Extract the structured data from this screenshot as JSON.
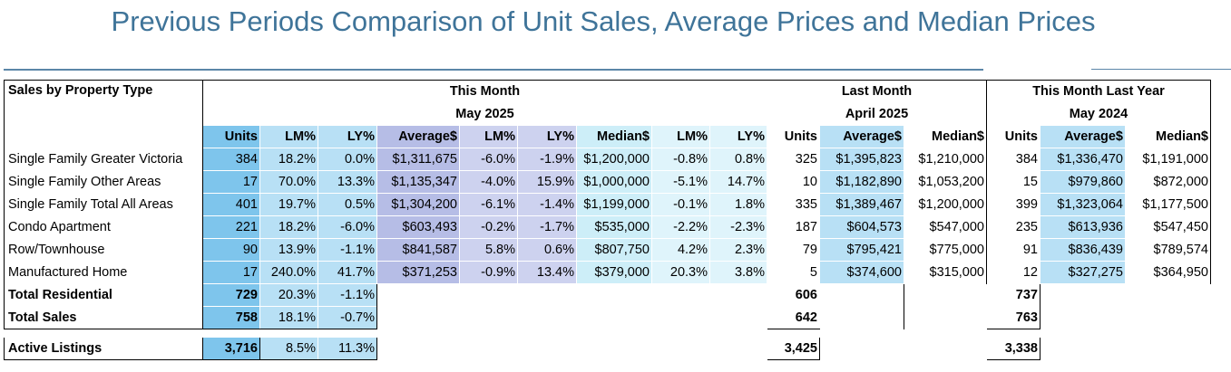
{
  "title": "Previous Periods Comparison of Unit Sales, Average Prices and Median Prices",
  "header": {
    "row_label": "Sales by Property Type",
    "this_month": "This Month",
    "this_month_period": "May 2025",
    "last_month": "Last Month",
    "last_month_period": "April 2025",
    "last_year": "This Month Last Year",
    "last_year_period": "May 2024",
    "cols": [
      "Units",
      "LM%",
      "LY%",
      "Average$",
      "LM%",
      "LY%",
      "Median$",
      "LM%",
      "LY%",
      "Units",
      "Average$",
      "Median$",
      "Units",
      "Average$",
      "Median$"
    ]
  },
  "rows": [
    {
      "label": "Single Family Greater Victoria",
      "v": [
        "384",
        "18.2%",
        "0.0%",
        "$1,311,675",
        "-6.0%",
        "-1.9%",
        "$1,200,000",
        "-0.8%",
        "0.8%",
        "325",
        "$1,395,823",
        "$1,210,000",
        "384",
        "$1,336,470",
        "$1,191,000"
      ]
    },
    {
      "label": "Single Family Other Areas",
      "v": [
        "17",
        "70.0%",
        "13.3%",
        "$1,135,347",
        "-4.0%",
        "15.9%",
        "$1,000,000",
        "-5.1%",
        "14.7%",
        "10",
        "$1,182,890",
        "$1,053,200",
        "15",
        "$979,860",
        "$872,000"
      ]
    },
    {
      "label": "Single Family Total All Areas",
      "v": [
        "401",
        "19.7%",
        "0.5%",
        "$1,304,200",
        "-6.1%",
        "-1.4%",
        "$1,199,000",
        "-0.1%",
        "1.8%",
        "335",
        "$1,389,467",
        "$1,200,000",
        "399",
        "$1,323,064",
        "$1,177,500"
      ]
    },
    {
      "label": "Condo Apartment",
      "v": [
        "221",
        "18.2%",
        "-6.0%",
        "$603,493",
        "-0.2%",
        "-1.7%",
        "$535,000",
        "-2.2%",
        "-2.3%",
        "187",
        "$604,573",
        "$547,000",
        "235",
        "$613,936",
        "$547,450"
      ]
    },
    {
      "label": "Row/Townhouse",
      "v": [
        "90",
        "13.9%",
        "-1.1%",
        "$841,587",
        "5.8%",
        "0.6%",
        "$807,750",
        "4.2%",
        "2.3%",
        "79",
        "$795,421",
        "$775,000",
        "91",
        "$836,439",
        "$789,574"
      ]
    },
    {
      "label": "Manufactured Home",
      "v": [
        "17",
        "240.0%",
        "41.7%",
        "$371,253",
        "-0.9%",
        "13.4%",
        "$379,000",
        "20.3%",
        "3.8%",
        "5",
        "$374,600",
        "$315,000",
        "12",
        "$327,275",
        "$364,950"
      ]
    }
  ],
  "totals": [
    {
      "label": "Total Residential",
      "units": "729",
      "lm": "20.3%",
      "ly": "-1.1%",
      "last_month_units": "606",
      "last_year_units": "737"
    },
    {
      "label": "Total Sales",
      "units": "758",
      "lm": "18.1%",
      "ly": "-0.7%",
      "last_month_units": "642",
      "last_year_units": "763"
    }
  ],
  "active": {
    "label": "Active Listings",
    "units": "3,716",
    "lm": "8.5%",
    "ly": "11.3%",
    "last_month_units": "3,425",
    "last_year_units": "3,338"
  },
  "colors": {
    "title": "#3f7499",
    "units": "#7ec5ec",
    "pct": "#b8e0f5",
    "average": "#b6bde6",
    "median": "#cdeef8"
  }
}
